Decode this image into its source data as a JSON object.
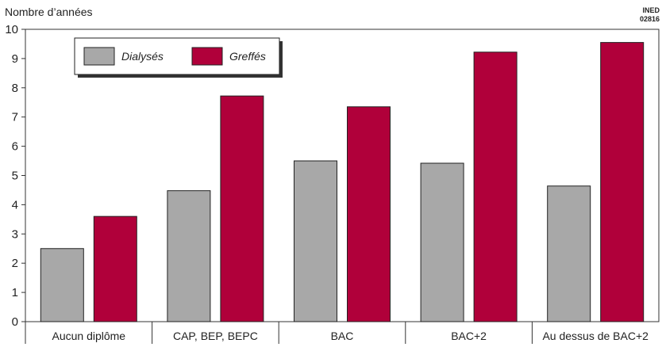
{
  "chart_data": {
    "type": "bar",
    "ylabel": "Nombre d’années",
    "source_line1": "INED",
    "source_line2": "02816",
    "categories": [
      "Aucun diplôme",
      "CAP, BEP, BEPC",
      "BAC",
      "BAC+2",
      "Au dessus de BAC+2"
    ],
    "series": [
      {
        "name": "Dialysés",
        "color": "#a8a8a8",
        "values": [
          2.5,
          4.48,
          5.5,
          5.42,
          4.64
        ]
      },
      {
        "name": "Greffés",
        "color": "#b0003a",
        "values": [
          3.6,
          7.72,
          7.35,
          9.22,
          9.55
        ]
      }
    ],
    "ylim": [
      0,
      10
    ],
    "yticks": [
      0,
      1,
      2,
      3,
      4,
      5,
      6,
      7,
      8,
      9,
      10
    ],
    "legend_position": "top-left",
    "grid": false
  }
}
